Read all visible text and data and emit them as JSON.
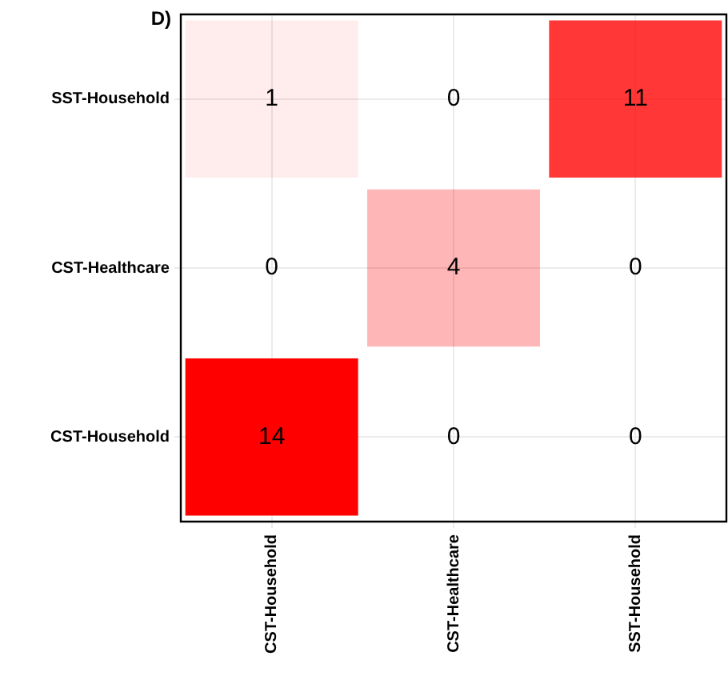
{
  "chart_data": {
    "type": "heatmap",
    "title": "D)",
    "categories": [
      "CST-Household",
      "CST-Healthcare",
      "SST-Household"
    ],
    "y_categories": [
      "SST-Household",
      "CST-Healthcare",
      "CST-Household"
    ],
    "cells": [
      [
        1,
        0,
        11
      ],
      [
        0,
        4,
        0
      ],
      [
        14,
        0,
        0
      ]
    ],
    "data_labels": true,
    "grid": true
  }
}
